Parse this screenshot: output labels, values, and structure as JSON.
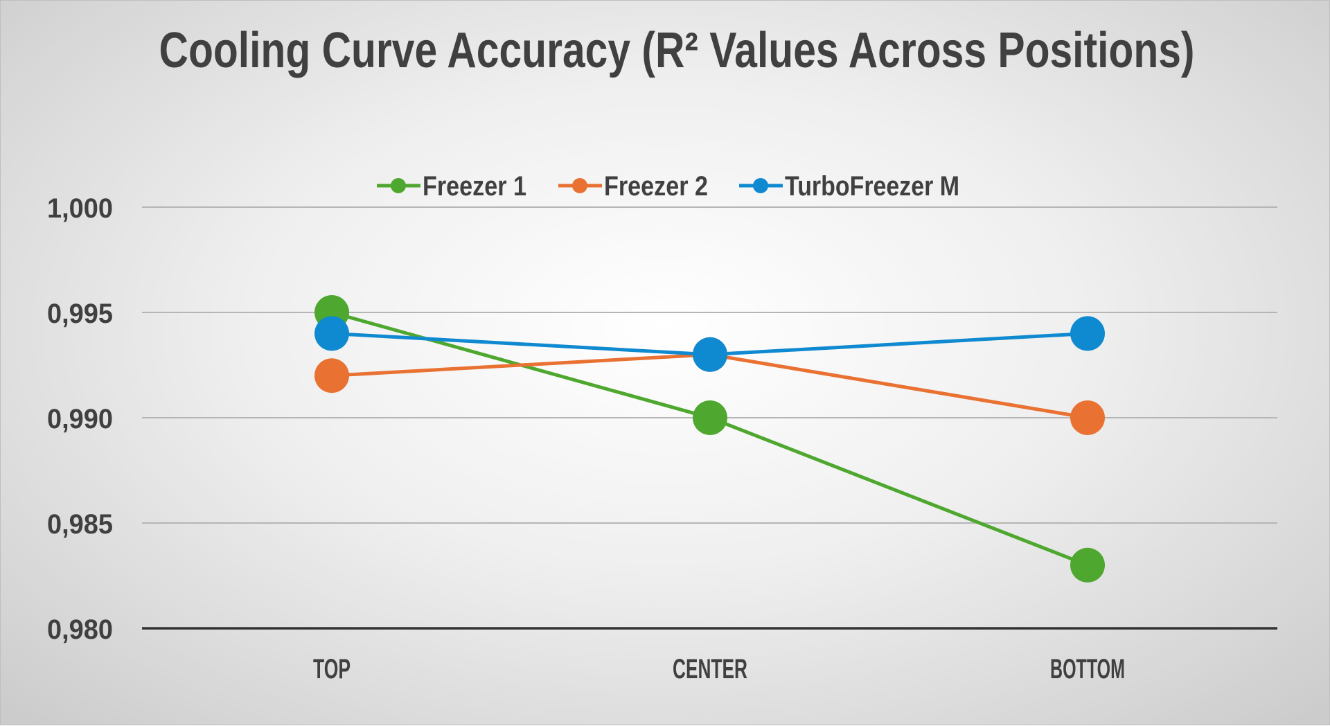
{
  "chart_data": {
    "type": "line",
    "title": "Cooling Curve Accuracy (R² Values Across Positions)",
    "categories": [
      "TOP",
      "CENTER",
      "BOTTOM"
    ],
    "series": [
      {
        "name": "Freezer 1",
        "color": "#4ea72e",
        "values": [
          0.995,
          0.99,
          0.983
        ]
      },
      {
        "name": "Freezer 2",
        "color": "#e97132",
        "values": [
          0.992,
          0.993,
          0.99
        ]
      },
      {
        "name": "TurboFreezer M",
        "color": "#0f8ad0",
        "values": [
          0.994,
          0.993,
          0.994
        ]
      }
    ],
    "ylim": [
      0.98,
      1.0
    ],
    "yticks": [
      1.0,
      0.995,
      0.99,
      0.985,
      0.98
    ],
    "ytick_labels": [
      "1,000",
      "0,995",
      "0,990",
      "0,985",
      "0,980"
    ],
    "grid": true,
    "legend": "top"
  }
}
